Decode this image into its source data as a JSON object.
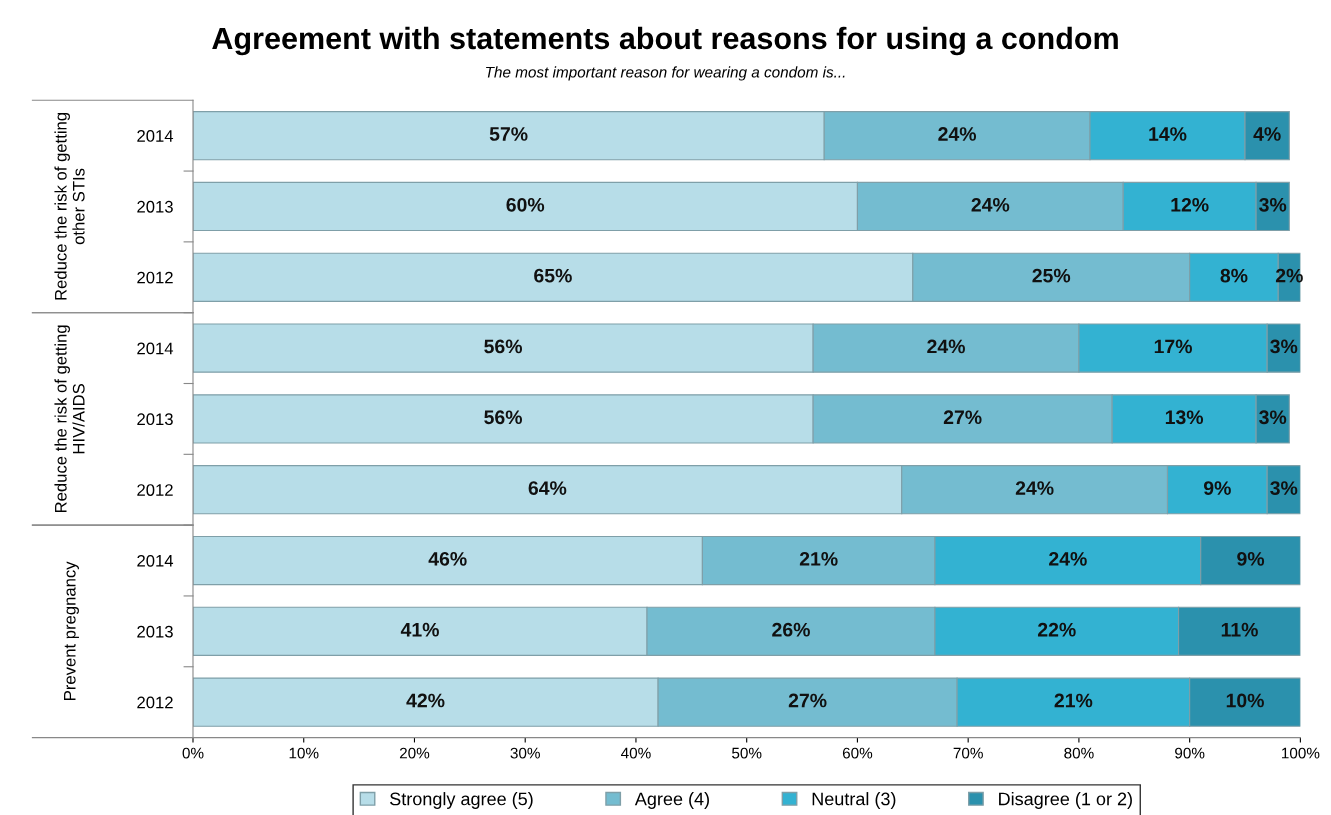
{
  "chart_data": {
    "type": "bar",
    "orientation": "horizontal",
    "stacked": true,
    "title": "Agreement with statements about reasons for using a condom",
    "subtitle": "The most important reason for wearing a condom is...",
    "categories": [
      "2014",
      "2013",
      "2012",
      "2014",
      "2013",
      "2012",
      "2014",
      "2013",
      "2012"
    ],
    "annotations": [
      "Reduce the risk of getting\nother STIs",
      "Reduce the risk of getting\nHIV/AIDS",
      "Prevent pregnancy"
    ],
    "series": [
      {
        "name": "Strongly agree (5)",
        "color": "#b7dde8",
        "values": [
          57,
          60,
          65,
          56,
          56,
          64,
          46,
          41,
          42
        ],
        "value_labels": [
          "57%",
          "60%",
          "65%",
          "56%",
          "56%",
          "64%",
          "46%",
          "41%",
          "42%"
        ]
      },
      {
        "name": "Agree (4)",
        "color": "#74bcd0",
        "values": [
          24,
          24,
          25,
          24,
          27,
          24,
          21,
          26,
          27
        ],
        "value_labels": [
          "24%",
          "24%",
          "25%",
          "24%",
          "27%",
          "24%",
          "21%",
          "26%",
          "27%"
        ]
      },
      {
        "name": "Neutral (3)",
        "color": "#33b2d2",
        "values": [
          14,
          12,
          8,
          17,
          13,
          9,
          24,
          22,
          21
        ],
        "value_labels": [
          "14%",
          "12%",
          "8%",
          "17%",
          "13%",
          "9%",
          "24%",
          "22%",
          "21%"
        ]
      },
      {
        "name": "Disagree (1 or 2)",
        "color": "#2b91ad",
        "values": [
          4,
          3,
          2,
          3,
          3,
          3,
          9,
          11,
          10
        ],
        "value_labels": [
          "4%",
          "3%",
          "2%",
          "3%",
          "3%",
          "3%",
          "9%",
          "11%",
          "10%"
        ]
      }
    ],
    "xlim": [
      0,
      100
    ],
    "xticks": [
      {
        "value": 0,
        "label": "0%"
      },
      {
        "value": 10,
        "label": "10%"
      },
      {
        "value": 20,
        "label": "20%"
      },
      {
        "value": 30,
        "label": "30%"
      },
      {
        "value": 40,
        "label": "40%"
      },
      {
        "value": 50,
        "label": "50%"
      },
      {
        "value": 60,
        "label": "60%"
      },
      {
        "value": 70,
        "label": "70%"
      },
      {
        "value": 80,
        "label": "80%"
      },
      {
        "value": 90,
        "label": "90%"
      },
      {
        "value": 100,
        "label": "100%"
      }
    ],
    "grid": false,
    "legend": "bottom"
  }
}
